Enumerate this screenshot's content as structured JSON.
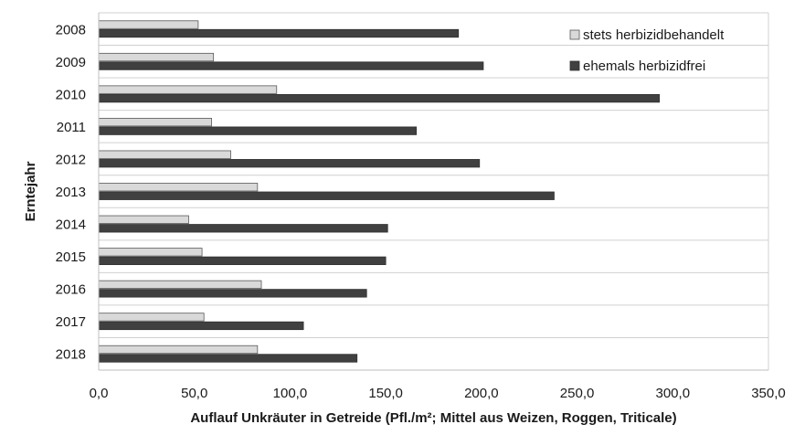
{
  "chart_data": {
    "type": "bar",
    "orientation": "horizontal",
    "categories": [
      "2008",
      "2009",
      "2010",
      "2011",
      "2012",
      "2013",
      "2014",
      "2015",
      "2016",
      "2017",
      "2018"
    ],
    "series": [
      {
        "name": "stets herbizidbehandelt",
        "color": "#d9d9d9",
        "values": [
          52,
          60,
          93,
          59,
          69,
          83,
          47,
          54,
          85,
          55,
          83
        ]
      },
      {
        "name": "ehemals herbizidfrei",
        "color": "#404040",
        "values": [
          188,
          201,
          293,
          166,
          199,
          238,
          151,
          150,
          140,
          107,
          135
        ]
      }
    ],
    "xlabel": "Auflauf Unkräuter in Getreide (Pfl./m²; Mittel aus Weizen, Roggen, Triticale)",
    "ylabel": "Erntejahr",
    "xlim": [
      0,
      350
    ],
    "xticks": [
      "0,0",
      "50,0",
      "100,0",
      "150,0",
      "200,0",
      "250,0",
      "300,0",
      "350,0"
    ],
    "grid": "horizontal gridlines between categories",
    "legend_position": "top-right"
  }
}
